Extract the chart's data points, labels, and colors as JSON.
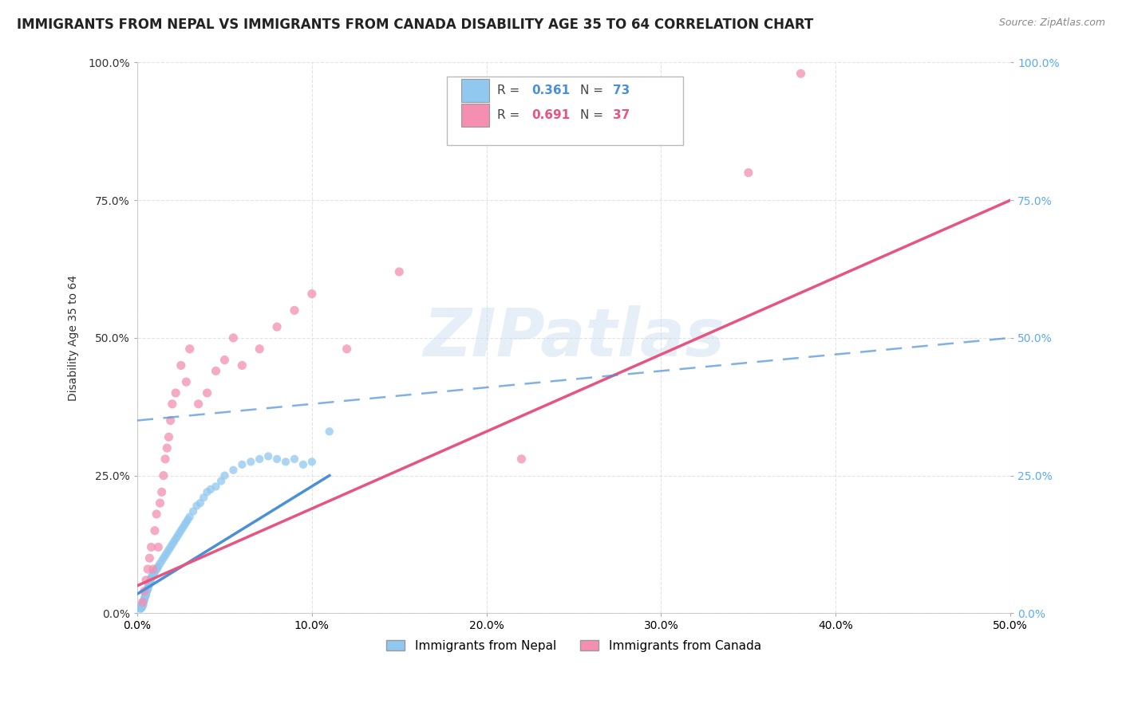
{
  "title": "IMMIGRANTS FROM NEPAL VS IMMIGRANTS FROM CANADA DISABILITY AGE 35 TO 64 CORRELATION CHART",
  "source": "Source: ZipAtlas.com",
  "ylabel": "Disability Age 35 to 64",
  "xlim": [
    0.0,
    50.0
  ],
  "ylim": [
    0.0,
    100.0
  ],
  "x_ticks": [
    0,
    10,
    20,
    30,
    40,
    50
  ],
  "y_ticks": [
    0,
    25,
    50,
    75,
    100
  ],
  "nepal_color": "#90c8f0",
  "canada_color": "#f48fb1",
  "nepal_trend_color": "#4a90d9",
  "canada_trend_color": "#e75480",
  "right_tick_color": "#5baaf5",
  "nepal_R": "0.361",
  "nepal_N": "73",
  "canada_R": "0.691",
  "canada_N": "37",
  "watermark_text": "ZIPatlas",
  "background_color": "#ffffff",
  "grid_color": "#dddddd",
  "title_fontsize": 12,
  "tick_fontsize": 10,
  "ylabel_fontsize": 10,
  "source_fontsize": 9,
  "legend_fontsize": 11,
  "nepal_x": [
    0.15,
    0.18,
    0.2,
    0.22,
    0.25,
    0.28,
    0.3,
    0.32,
    0.35,
    0.38,
    0.4,
    0.42,
    0.45,
    0.48,
    0.5,
    0.52,
    0.55,
    0.58,
    0.6,
    0.62,
    0.65,
    0.68,
    0.7,
    0.72,
    0.75,
    0.78,
    0.8,
    0.85,
    0.9,
    0.95,
    1.0,
    1.05,
    1.1,
    1.15,
    1.2,
    1.3,
    1.4,
    1.5,
    1.6,
    1.7,
    1.8,
    1.9,
    2.0,
    2.1,
    2.2,
    2.3,
    2.4,
    2.5,
    2.6,
    2.7,
    2.8,
    2.9,
    3.0,
    3.2,
    3.4,
    3.6,
    3.8,
    4.0,
    4.2,
    4.5,
    4.8,
    5.0,
    5.5,
    6.0,
    6.5,
    7.0,
    7.5,
    8.0,
    8.5,
    9.0,
    9.5,
    10.0,
    11.0
  ],
  "nepal_y": [
    1.0,
    0.8,
    1.2,
    0.9,
    1.5,
    1.1,
    1.8,
    2.0,
    1.6,
    2.2,
    2.5,
    2.8,
    3.0,
    3.2,
    3.5,
    3.8,
    4.0,
    4.2,
    4.5,
    4.8,
    5.0,
    5.2,
    5.5,
    5.8,
    6.0,
    6.2,
    6.5,
    6.8,
    7.0,
    7.2,
    7.5,
    7.8,
    8.0,
    8.2,
    8.5,
    9.0,
    9.5,
    10.0,
    10.5,
    11.0,
    11.5,
    12.0,
    12.5,
    13.0,
    13.5,
    14.0,
    14.5,
    15.0,
    15.5,
    16.0,
    16.5,
    17.0,
    17.5,
    18.5,
    19.5,
    20.0,
    21.0,
    22.0,
    22.5,
    23.0,
    24.0,
    25.0,
    26.0,
    27.0,
    27.5,
    28.0,
    28.5,
    28.0,
    27.5,
    28.0,
    27.0,
    27.5,
    33.0
  ],
  "canada_x": [
    0.3,
    0.4,
    0.5,
    0.6,
    0.7,
    0.8,
    0.9,
    1.0,
    1.1,
    1.2,
    1.3,
    1.4,
    1.5,
    1.6,
    1.7,
    1.8,
    1.9,
    2.0,
    2.2,
    2.5,
    2.8,
    3.0,
    3.5,
    4.0,
    4.5,
    5.0,
    5.5,
    6.0,
    7.0,
    8.0,
    9.0,
    10.0,
    12.0,
    15.0,
    22.0,
    38.0,
    35.0
  ],
  "canada_y": [
    2.0,
    4.0,
    6.0,
    8.0,
    10.0,
    12.0,
    8.0,
    15.0,
    18.0,
    12.0,
    20.0,
    22.0,
    25.0,
    28.0,
    30.0,
    32.0,
    35.0,
    38.0,
    40.0,
    45.0,
    42.0,
    48.0,
    38.0,
    40.0,
    44.0,
    46.0,
    50.0,
    45.0,
    48.0,
    52.0,
    55.0,
    58.0,
    48.0,
    62.0,
    28.0,
    98.0,
    80.0
  ],
  "nepal_line_x0": 0.0,
  "nepal_line_y0": 3.5,
  "nepal_line_x1": 11.0,
  "nepal_line_y1": 25.0,
  "canada_line_x0": 0.0,
  "canada_line_y0": 5.0,
  "canada_line_x1": 50.0,
  "canada_line_y1": 75.0,
  "nepal_dash_x0": 0.0,
  "nepal_dash_y0": 35.0,
  "nepal_dash_x1": 50.0,
  "nepal_dash_y1": 50.0
}
